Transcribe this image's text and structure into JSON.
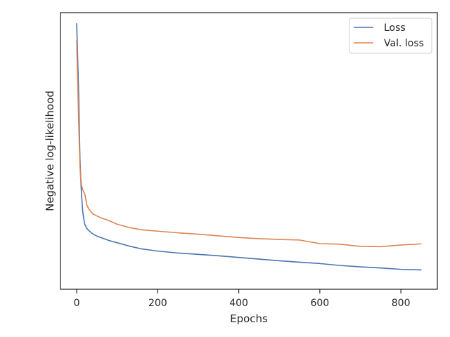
{
  "chart_data": {
    "type": "line",
    "xlabel": "Epochs",
    "ylabel": "Negative log-likelihood",
    "xlim": [
      -40,
      890
    ],
    "ylim": [
      0,
      100
    ],
    "xticks": [
      0,
      200,
      400,
      600,
      800
    ],
    "yticks_shown": false,
    "grid": false,
    "legend_position": "top-right",
    "series": [
      {
        "name": "Loss",
        "color": "#4c72b0",
        "x": [
          0,
          2,
          5,
          8,
          10,
          12,
          15,
          18,
          20,
          25,
          30,
          40,
          50,
          60,
          80,
          100,
          130,
          160,
          200,
          250,
          300,
          350,
          400,
          450,
          500,
          550,
          600,
          650,
          700,
          750,
          800,
          850
        ],
        "y": [
          96,
          86,
          70,
          48,
          40,
          34,
          28,
          25,
          23.5,
          22,
          21.2,
          20,
          19.2,
          18.7,
          17.6,
          16.8,
          15.6,
          14.6,
          13.8,
          13.1,
          12.6,
          12.1,
          11.5,
          10.9,
          10.3,
          9.8,
          9.3,
          8.6,
          8.1,
          7.7,
          7.2,
          7.0
        ]
      },
      {
        "name": "Val. loss",
        "color": "#dd8452",
        "x": [
          0,
          2,
          5,
          8,
          10,
          12,
          15,
          18,
          20,
          25,
          30,
          40,
          50,
          60,
          80,
          100,
          130,
          160,
          200,
          250,
          300,
          350,
          400,
          450,
          500,
          550,
          600,
          650,
          700,
          750,
          800,
          850
        ],
        "y": [
          90,
          78,
          60,
          45,
          40,
          37.5,
          36,
          35,
          34.5,
          30.5,
          29,
          27.2,
          26.5,
          25.8,
          24.8,
          23.5,
          22.3,
          21.5,
          21,
          20.4,
          19.9,
          19.3,
          18.7,
          18.3,
          18.0,
          17.8,
          16.5,
          16.3,
          15.5,
          15.4,
          16.0,
          16.4
        ]
      }
    ]
  }
}
